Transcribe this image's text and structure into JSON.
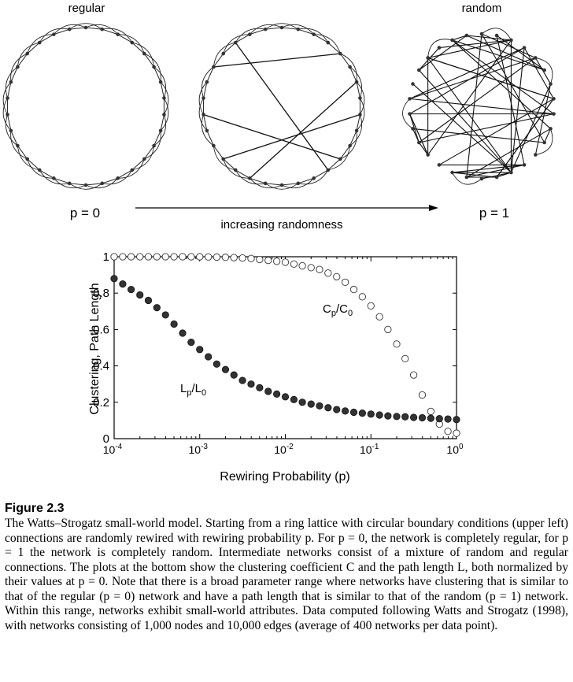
{
  "top": {
    "label_regular": "regular",
    "label_random": "random",
    "label_p0": "p = 0",
    "label_p1": "p = 1",
    "arrow_label": "increasing randomness"
  },
  "chart_data": {
    "type": "scatter",
    "title": "",
    "xlabel": "Rewiring Probability (p)",
    "ylabel": "Clustering, Path Length",
    "xscale": "log",
    "xlim": [
      0.0001,
      1
    ],
    "ylim": [
      0,
      1
    ],
    "grid": false,
    "x_tick_labels": [
      {
        "base": "10",
        "exp": "-4"
      },
      {
        "base": "10",
        "exp": "-3"
      },
      {
        "base": "10",
        "exp": "-2"
      },
      {
        "base": "10",
        "exp": "-1"
      },
      {
        "base": "10",
        "exp": "0"
      }
    ],
    "x_ticks": [
      0.0001,
      0.001,
      0.01,
      0.1,
      1
    ],
    "y_ticks": [
      0,
      0.2,
      0.4,
      0.6,
      0.8,
      1
    ],
    "y_tick_labels": [
      "0",
      "0.2",
      "0.4",
      "0.6",
      "0.8",
      "1"
    ],
    "series": [
      {
        "name": "Cp/C0",
        "label_main": "C",
        "label_sub1": "p",
        "label_sep": "/C",
        "label_sub2": "0",
        "marker": "open-circle",
        "color": "#000000",
        "x": [
          0.0001,
          0.000126,
          0.000158,
          0.0002,
          0.000251,
          0.000316,
          0.000398,
          0.000501,
          0.000631,
          0.000794,
          0.001,
          0.00126,
          0.00158,
          0.002,
          0.00251,
          0.00316,
          0.00398,
          0.00501,
          0.00631,
          0.00794,
          0.01,
          0.0126,
          0.0158,
          0.02,
          0.0251,
          0.0316,
          0.0398,
          0.0501,
          0.0631,
          0.0794,
          0.1,
          0.126,
          0.158,
          0.2,
          0.251,
          0.316,
          0.398,
          0.501,
          0.631,
          0.794,
          1
        ],
        "y": [
          1.0,
          1.0,
          1.0,
          1.0,
          1.0,
          1.0,
          1.0,
          1.0,
          1.0,
          1.0,
          1.0,
          0.999,
          0.998,
          0.997,
          0.995,
          0.993,
          0.99,
          0.985,
          0.98,
          0.975,
          0.97,
          0.96,
          0.95,
          0.94,
          0.93,
          0.91,
          0.89,
          0.86,
          0.82,
          0.78,
          0.73,
          0.67,
          0.6,
          0.52,
          0.44,
          0.35,
          0.24,
          0.15,
          0.08,
          0.04,
          0.03
        ]
      },
      {
        "name": "Lp/L0",
        "label_main": "L",
        "label_sub1": "p",
        "label_sep": "/L",
        "label_sub2": "0",
        "marker": "filled-circle",
        "color": "#000000",
        "x": [
          0.0001,
          0.000126,
          0.000158,
          0.0002,
          0.000251,
          0.000316,
          0.000398,
          0.000501,
          0.000631,
          0.000794,
          0.001,
          0.00126,
          0.00158,
          0.002,
          0.00251,
          0.00316,
          0.00398,
          0.00501,
          0.00631,
          0.00794,
          0.01,
          0.0126,
          0.0158,
          0.02,
          0.0251,
          0.0316,
          0.0398,
          0.0501,
          0.0631,
          0.0794,
          0.1,
          0.126,
          0.158,
          0.2,
          0.251,
          0.316,
          0.398,
          0.501,
          0.631,
          0.794,
          1
        ],
        "y": [
          0.88,
          0.85,
          0.82,
          0.79,
          0.76,
          0.72,
          0.68,
          0.63,
          0.58,
          0.53,
          0.49,
          0.45,
          0.41,
          0.38,
          0.35,
          0.32,
          0.3,
          0.28,
          0.26,
          0.245,
          0.23,
          0.215,
          0.2,
          0.19,
          0.18,
          0.17,
          0.16,
          0.152,
          0.145,
          0.14,
          0.135,
          0.13,
          0.125,
          0.122,
          0.12,
          0.117,
          0.115,
          0.112,
          0.11,
          0.108,
          0.105
        ]
      }
    ]
  },
  "caption": {
    "figure_label": "Figure 2.3",
    "text": "The Watts–Strogatz small-world model. Starting from a ring lattice with circular boundary conditions (upper left) connections are randomly rewired with rewiring probability p. For p = 0, the network is completely regular, for p = 1 the network is completely random. Intermediate networks consist of a mixture of random and regular connections. The plots at the bottom show the clustering coefficient C and the path length L, both normalized by their values at p = 0. Note that there is a broad parameter range where networks have clustering that is similar to that of the regular (p = 0) network and have a path length that is similar to that of the random (p = 1) network. Within this range, networks exhibit small-world attributes. Data computed following Watts and Strogatz (1998), with networks consisting of 1,000 nodes and 10,000 edges (average of 400 networks per data point)."
  }
}
